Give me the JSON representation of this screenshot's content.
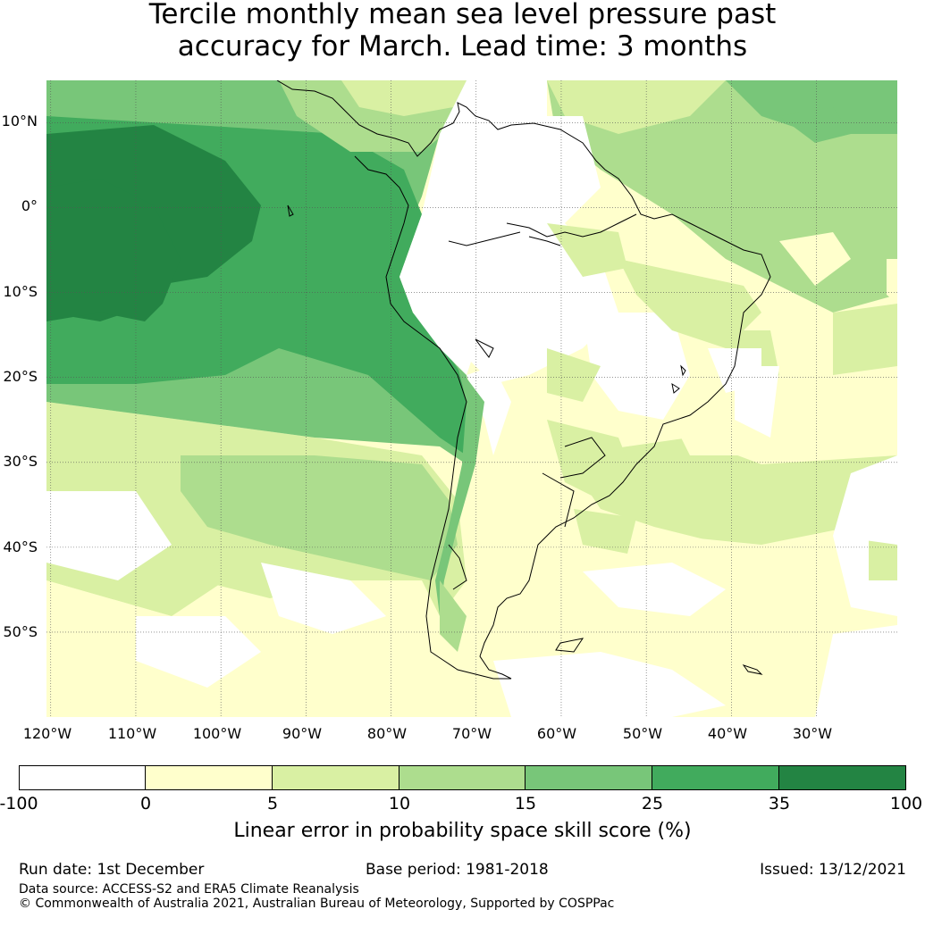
{
  "title": {
    "line1": "Tercile monthly mean sea level pressure past",
    "line2": "accuracy for March. Lead time: 3 months"
  },
  "map": {
    "lat_labels": [
      "10°N",
      "0°",
      "10°S",
      "20°S",
      "30°S",
      "40°S",
      "50°S"
    ],
    "lon_labels": [
      "120°W",
      "110°W",
      "100°W",
      "90°W",
      "80°W",
      "70°W",
      "60°W",
      "50°W",
      "40°W",
      "30°W"
    ],
    "lat_values": [
      10,
      0,
      -10,
      -20,
      -30,
      -40,
      -50
    ],
    "lon_values": [
      -120,
      -110,
      -100,
      -90,
      -80,
      -70,
      -60,
      -50,
      -40,
      -30
    ],
    "extent": {
      "lon_min": -120.5,
      "lon_max": -20.5,
      "lat_min": -60,
      "lat_max": 15
    }
  },
  "colorbar": {
    "ticks": [
      "-100",
      "0",
      "5",
      "10",
      "15",
      "25",
      "35",
      "100"
    ],
    "colors": [
      "#ffffff",
      "#ffffcc",
      "#d9f0a3",
      "#addd8e",
      "#78c679",
      "#41ab5d",
      "#238443"
    ],
    "label": "Linear error in probability space skill score (%)"
  },
  "footer": {
    "run_date": "Run date: 1st December",
    "base_period": "Base period: 1981-2018",
    "issued": "Issued: 13/12/2021",
    "data_source": "Data source: ACCESS-S2 and ERA5 Climate Reanalysis",
    "copyright": "© Commonwealth of Australia 2021, Australian Bureau of Meteorology, Supported by COSPPac"
  }
}
